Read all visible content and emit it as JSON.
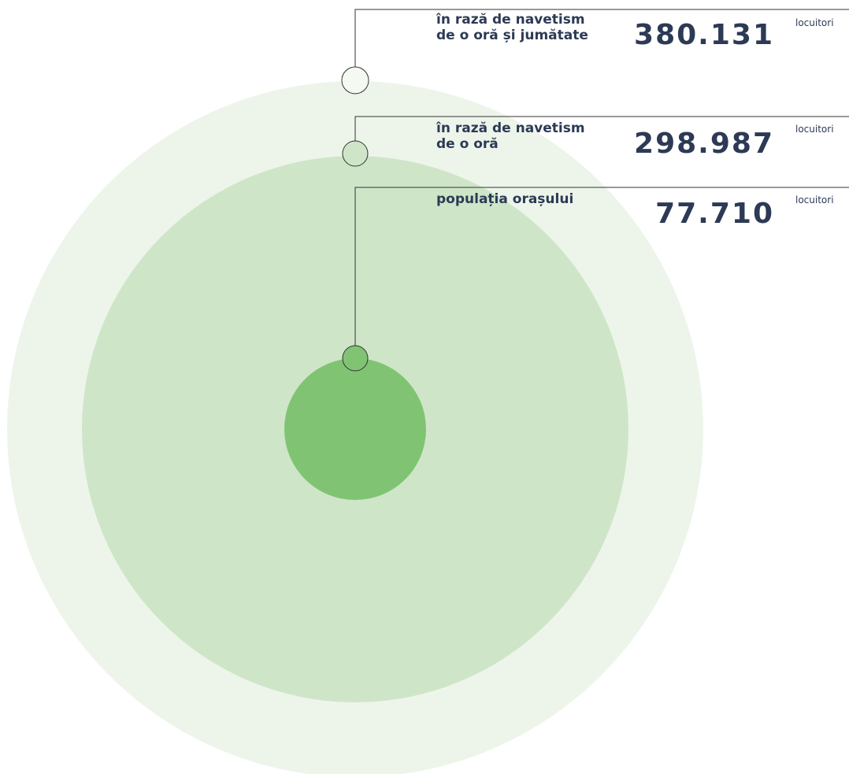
{
  "items": [
    {
      "label": [
        "în rază de navetism",
        "de o oră și jumătate"
      ],
      "value": "380.131",
      "unit": "locuitori"
    },
    {
      "label": [
        "în rază de navetism",
        "de o oră"
      ],
      "value": "298.987",
      "unit": "locuitori"
    },
    {
      "label": [
        "populația orașului"
      ],
      "value": "77.710",
      "unit": "locuitori"
    }
  ]
}
